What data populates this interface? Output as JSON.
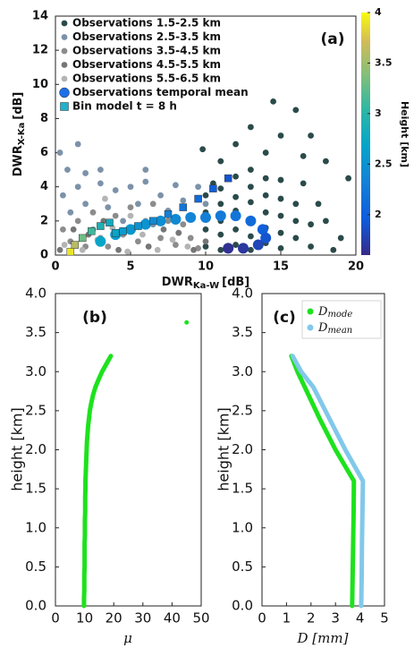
{
  "chart_data": [
    {
      "type": "scatter",
      "panel_label": "(a)",
      "x_label": {
        "text": "DWR",
        "sub": "Ka-W",
        "unit": "[dB]"
      },
      "y_label": {
        "text": "DWR",
        "sub": "X-Ka",
        "unit": "[dB]"
      },
      "xlim": [
        0,
        20
      ],
      "ylim": [
        0,
        14
      ],
      "xticks": [
        0,
        5,
        10,
        15,
        20
      ],
      "yticks": [
        0,
        2,
        4,
        6,
        8,
        10,
        12,
        14
      ],
      "legend": "upper left",
      "colorbar": {
        "label": "Height [km]",
        "lim": [
          1.6,
          4
        ],
        "ticks": [
          2,
          2.5,
          3,
          3.5,
          4
        ],
        "colormap": "parula"
      },
      "series": [
        {
          "name": "Observations 1.5-2.5 km",
          "color": "#2b4a4a",
          "marker": "dot",
          "x": [
            10,
            10,
            10,
            10,
            10.5,
            11,
            11,
            11,
            11,
            11,
            12,
            12,
            12,
            12,
            12,
            13,
            13,
            13,
            13,
            13,
            13,
            14,
            14,
            14,
            14,
            14,
            15,
            15,
            15,
            15,
            15,
            16,
            16,
            16,
            16.5,
            17,
            17,
            17.5,
            18,
            18.5,
            19,
            19.5,
            18,
            14,
            15,
            16,
            13,
            17,
            12,
            16.5,
            14.5,
            11,
            9.8
          ],
          "values": [
            0.5,
            1.5,
            2.5,
            3.5,
            4.2,
            0.3,
            1.2,
            2,
            3,
            3.9,
            0.6,
            1.5,
            2.6,
            3.4,
            4.6,
            0.3,
            1.1,
            2.1,
            3.1,
            4,
            5,
            0.7,
            1.6,
            2.5,
            3.5,
            4.5,
            0.4,
            1.3,
            2.3,
            3.3,
            4.4,
            1,
            2,
            3,
            4.2,
            0.5,
            1.8,
            3,
            2,
            0.3,
            1,
            4.5,
            5.5,
            6,
            7,
            8.5,
            7.5,
            7,
            6.5,
            5.8,
            9,
            5.5,
            6.2
          ]
        },
        {
          "name": "Observations 2.5-3.5 km",
          "color": "#7c92a9",
          "marker": "dot",
          "x": [
            0.5,
            1,
            1.5,
            2,
            2.5,
            3,
            3.5,
            4,
            4.5,
            5,
            5.5,
            6,
            6.5,
            7,
            7.5,
            8,
            8.5,
            9,
            9.5,
            10,
            0.3,
            1.5,
            0.8,
            3,
            6,
            2
          ],
          "values": [
            3.5,
            2.5,
            4,
            3,
            1.5,
            4.2,
            2.8,
            3.8,
            2,
            4,
            3,
            4.3,
            1.8,
            3.5,
            2.6,
            4.1,
            3.2,
            2.2,
            4,
            3,
            6,
            6.5,
            5,
            5,
            5,
            4.8
          ]
        },
        {
          "name": "Observations 3.5-4.5 km",
          "color": "#8c8c8c",
          "marker": "dot",
          "x": [
            0.5,
            1,
            1.5,
            2,
            2.5,
            3,
            3.5,
            4,
            4.5,
            5,
            5.5,
            6,
            6.5,
            7,
            7.5,
            8,
            8.5,
            9,
            9.5
          ],
          "values": [
            1.5,
            0.8,
            2,
            0.5,
            2.5,
            1,
            0.5,
            2.3,
            1.2,
            2.8,
            0.8,
            2,
            3,
            1,
            2,
            0.6,
            1.8,
            1,
            0.4
          ]
        },
        {
          "name": "Observations 4.5-5.5 km",
          "color": "#767676",
          "marker": "dot",
          "x": [
            0.3,
            1.2,
            2.2,
            3.2,
            4.2,
            5.2,
            6.2,
            7.2,
            8.2,
            9.2,
            10
          ],
          "values": [
            0.3,
            1.5,
            1.2,
            2,
            0.3,
            1.6,
            0.5,
            1.5,
            1.3,
            0.3,
            0.8
          ]
        },
        {
          "name": "Observations 5.5-6.5 km",
          "color": "#b4b4b4",
          "marker": "dot",
          "x": [
            0.6,
            1.8,
            2.8,
            3.8,
            4.8,
            5.8,
            6.8,
            7.8,
            8.8,
            5,
            3.3
          ],
          "values": [
            0.6,
            0.3,
            0.9,
            1.6,
            0.2,
            1.2,
            0.3,
            0.9,
            0.5,
            2.3,
            3.3
          ]
        },
        {
          "name": "Observations temporal mean",
          "color": "#1f6fe6",
          "marker": "circle",
          "x": [
            3,
            4,
            5,
            6,
            7,
            8,
            9,
            10,
            11,
            12,
            13,
            13.8,
            14,
            13.5,
            12.5,
            11.5
          ],
          "values": [
            0.8,
            1.2,
            1.5,
            1.8,
            2,
            2.1,
            2.2,
            2.2,
            2.3,
            2.3,
            2,
            1.5,
            1,
            0.6,
            0.4,
            0.4
          ],
          "heights": [
            2.7,
            2.6,
            2.55,
            2.5,
            2.45,
            2.4,
            2.35,
            2.3,
            2.25,
            2.2,
            2.1,
            2,
            1.9,
            1.8,
            1.7,
            1.65
          ]
        },
        {
          "name": "Bin model t = 8 h",
          "color": "#21b1c9",
          "marker": "square",
          "x": [
            1,
            1.3,
            1.8,
            2.4,
            3,
            3.6,
            4,
            4.5,
            5.5,
            6.5,
            7.5,
            8.5,
            9.5,
            10.5,
            11.5
          ],
          "values": [
            0.2,
            0.6,
            1,
            1.4,
            1.7,
            1.9,
            1.3,
            1.4,
            1.7,
            2,
            2.4,
            2.8,
            3.3,
            3.9,
            4.5
          ],
          "heights": [
            3.9,
            3.6,
            3.3,
            3.1,
            2.9,
            2.8,
            2.7,
            2.6,
            2.5,
            2.4,
            2.3,
            2.2,
            2.1,
            2,
            1.9
          ]
        }
      ]
    },
    {
      "type": "line",
      "panel_label": "(b)",
      "x_label": "μ",
      "y_label": "height [km]",
      "xlim": [
        0,
        50
      ],
      "ylim": [
        0,
        4
      ],
      "xticks": [
        0,
        10,
        20,
        30,
        40,
        50
      ],
      "yticks": [
        {
          "value": 0,
          "label": "0.0"
        },
        0.5,
        {
          "value": 1,
          "label": "1.0"
        },
        1.5,
        {
          "value": 2,
          "label": "2.0"
        },
        2.5,
        {
          "value": 3,
          "label": "3.0"
        },
        3.5,
        {
          "value": 4,
          "label": "4.0"
        }
      ],
      "series": [
        {
          "color": "#1de21d",
          "x": [
            9.8,
            9.8,
            9.9,
            9.9,
            9.9,
            10,
            10,
            10,
            10,
            10.1,
            10.1,
            10.1,
            10.2,
            10.2,
            10.2,
            10.3,
            10.3,
            10.4,
            10.5,
            10.6,
            10.7,
            10.8,
            11,
            11.2,
            11.5,
            11.8,
            12.3,
            12.9,
            13.7,
            14.8,
            16,
            17.5,
            19,
            null,
            45
          ],
          "values": [
            0,
            0.1,
            0.2,
            0.3,
            0.4,
            0.5,
            0.6,
            0.7,
            0.8,
            0.9,
            1,
            1.1,
            1.2,
            1.3,
            1.4,
            1.5,
            1.6,
            1.7,
            1.8,
            1.9,
            2,
            2.1,
            2.2,
            2.3,
            2.4,
            2.5,
            2.6,
            2.7,
            2.8,
            2.9,
            3,
            3.1,
            3.2,
            null,
            3.63
          ]
        }
      ]
    },
    {
      "type": "line",
      "panel_label": "(c)",
      "x_label": "D [mm]",
      "y_label": "height [km]",
      "xlim": [
        0,
        5
      ],
      "ylim": [
        0,
        4
      ],
      "xticks": [
        0,
        1,
        2,
        3,
        4,
        5
      ],
      "yticks": [
        {
          "value": 0,
          "label": "0.0"
        },
        0.5,
        {
          "value": 1,
          "label": "1.0"
        },
        1.5,
        {
          "value": 2,
          "label": "2.0"
        },
        2.5,
        {
          "value": 3,
          "label": "3.0"
        },
        3.5,
        {
          "value": 4,
          "label": "4.0"
        }
      ],
      "legend": "upper right",
      "series": [
        {
          "name": "D",
          "name_sub": "mode",
          "color": "#1de21d",
          "x": [
            3.68,
            3.7,
            3.72,
            3.74,
            3.75,
            3,
            2.35,
            1.75,
            1.45,
            1.2
          ],
          "values": [
            0,
            0.4,
            0.8,
            1.2,
            1.6,
            2,
            2.4,
            2.8,
            3,
            3.2
          ]
        },
        {
          "name": "D",
          "name_sub": "mean",
          "color": "#82c8ea",
          "x": [
            4.05,
            4.07,
            4.08,
            4.1,
            4.12,
            3.4,
            2.75,
            2.1,
            1.6,
            1.25
          ],
          "values": [
            0,
            0.4,
            0.8,
            1.2,
            1.6,
            2,
            2.4,
            2.8,
            3,
            3.2
          ]
        }
      ]
    }
  ]
}
